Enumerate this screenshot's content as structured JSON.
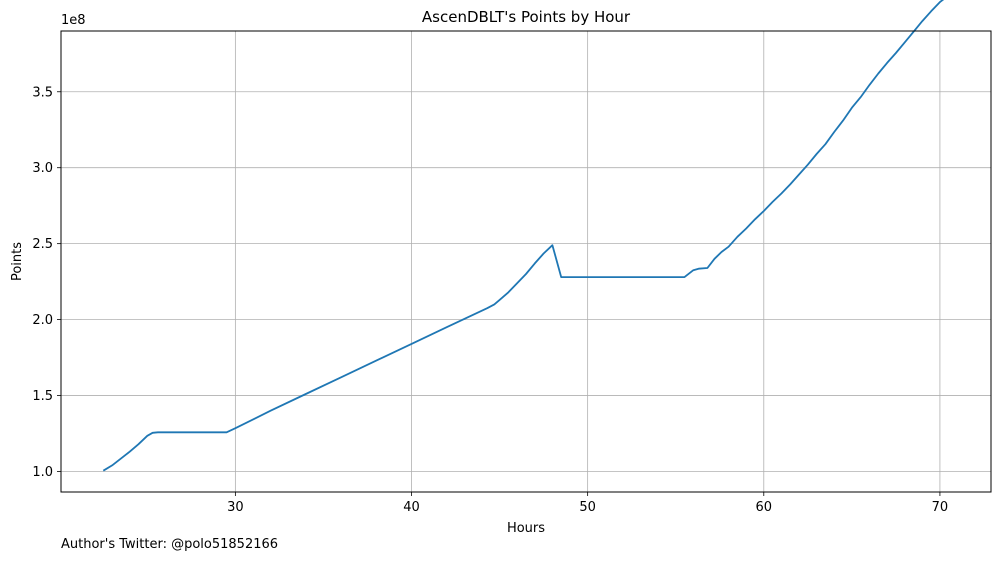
{
  "chart_data": {
    "type": "line",
    "title": "AscenDBLT's Points by Hour",
    "xlabel": "Hours",
    "ylabel": "Points",
    "y_offset_label": "1e8",
    "xlim": [
      20.1,
      72.9
    ],
    "ylim": [
      0.865,
      3.9
    ],
    "x_ticks": [
      30,
      40,
      50,
      60,
      70
    ],
    "x_tick_labels": [
      "30",
      "40",
      "50",
      "60",
      "70"
    ],
    "y_ticks": [
      1.0,
      1.5,
      2.0,
      2.5,
      3.0,
      3.5
    ],
    "y_tick_labels": [
      "1.0",
      "1.5",
      "2.0",
      "2.5",
      "3.0",
      "3.5"
    ],
    "grid": true,
    "series": [
      {
        "color": "#1f77b4",
        "x": [
          22.5,
          23.0,
          23.5,
          24.0,
          24.5,
          25.0,
          25.3,
          25.6,
          26.0,
          27.0,
          28.0,
          29.0,
          29.5,
          30.0,
          32.0,
          34.0,
          36.0,
          38.0,
          40.0,
          42.0,
          44.3,
          44.7,
          45.0,
          45.5,
          46.0,
          46.5,
          47.0,
          47.5,
          48.0,
          48.5,
          49.0,
          50.0,
          52.0,
          54.0,
          55.5,
          56.0,
          56.3,
          56.8,
          57.2,
          57.6,
          58.0,
          58.5,
          59.0,
          59.5,
          60.0,
          60.5,
          61.0,
          61.5,
          62.0,
          62.5,
          63.0,
          63.5,
          64.0,
          64.5,
          65.0,
          65.5,
          66.0,
          66.5,
          67.0,
          67.5,
          68.0,
          68.5,
          69.0,
          69.5,
          70.0,
          70.5
        ],
        "y": [
          1.005,
          1.04,
          1.085,
          1.13,
          1.18,
          1.235,
          1.255,
          1.258,
          1.258,
          1.258,
          1.258,
          1.258,
          1.258,
          1.285,
          1.4,
          1.51,
          1.62,
          1.73,
          1.84,
          1.95,
          2.075,
          2.1,
          2.13,
          2.18,
          2.24,
          2.3,
          2.37,
          2.435,
          2.49,
          2.28,
          2.28,
          2.28,
          2.28,
          2.28,
          2.28,
          2.325,
          2.335,
          2.34,
          2.4,
          2.445,
          2.48,
          2.545,
          2.6,
          2.66,
          2.715,
          2.775,
          2.83,
          2.89,
          2.955,
          3.02,
          3.09,
          3.155,
          3.235,
          3.31,
          3.395,
          3.465,
          3.545,
          3.62,
          3.69,
          3.755,
          3.825,
          3.895,
          3.965,
          4.03,
          4.09,
          4.135
        ]
      }
    ]
  },
  "footer": {
    "author_note": "Author's Twitter: @polo51852166"
  }
}
